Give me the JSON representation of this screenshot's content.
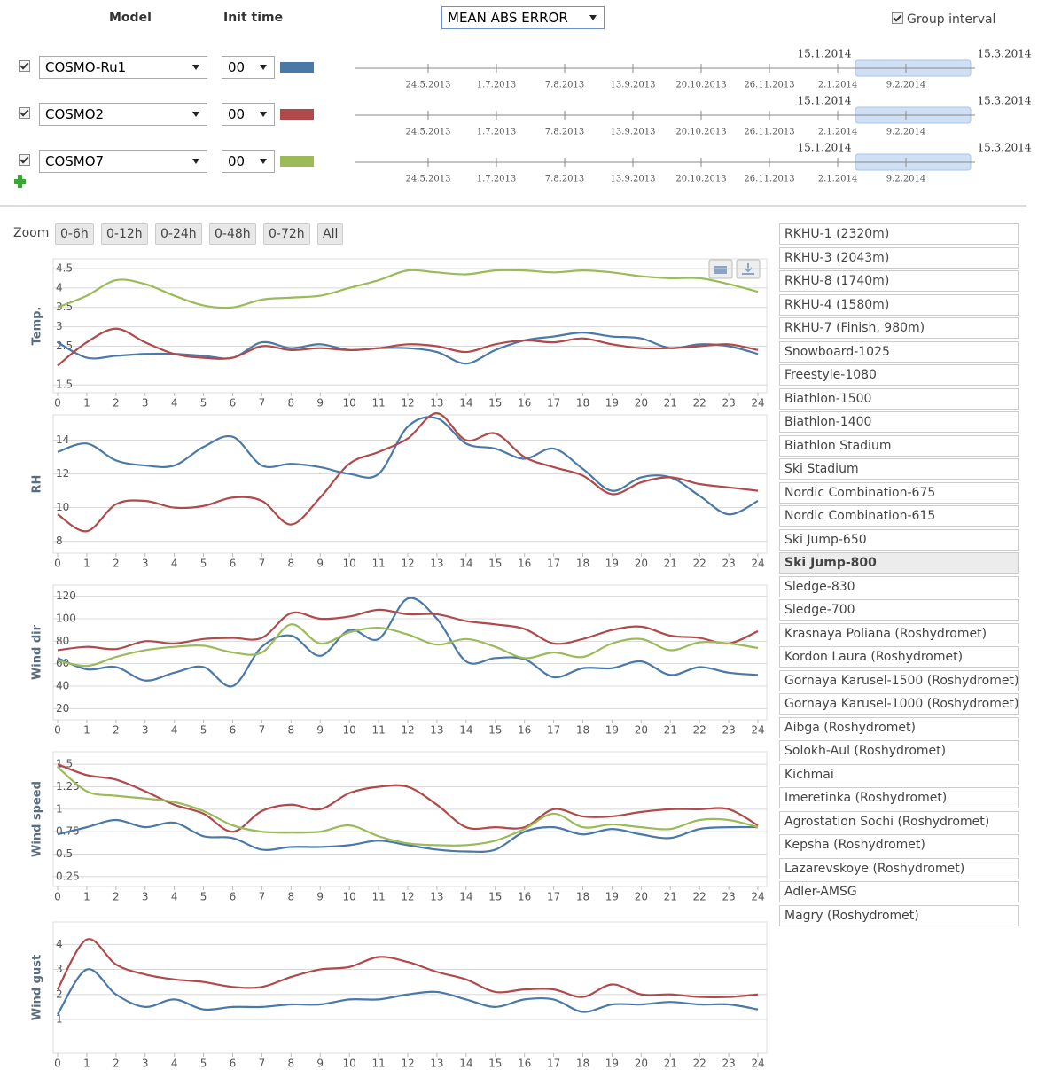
{
  "header": {
    "model_label": "Model",
    "init_label": "Init time",
    "metric": "MEAN ABS ERROR",
    "group_interval": "Group interval",
    "group_checked": true
  },
  "models": [
    {
      "name": "COSMO-Ru1",
      "init": "00",
      "color": "#4a79a8",
      "checked": true
    },
    {
      "name": "COSMO2",
      "init": "00",
      "color": "#b04a4a",
      "checked": true
    },
    {
      "name": "COSMO7",
      "init": "00",
      "color": "#9bbb59",
      "checked": true
    }
  ],
  "timelines": [
    {
      "start": "15.1.2014",
      "end": "15.3.2014",
      "ticks": [
        "24.5.2013",
        "1.7.2013",
        "7.8.2013",
        "13.9.2013",
        "20.10.2013",
        "26.11.2013",
        "2.1.2014",
        "9.2.2014"
      ]
    },
    {
      "start": "15.1.2014",
      "end": "15.3.2014",
      "ticks": [
        "24.5.2013",
        "1.7.2013",
        "7.8.2013",
        "13.9.2013",
        "20.10.2013",
        "26.11.2013",
        "2.1.2014",
        "9.2.2014"
      ]
    },
    {
      "start": "15.1.2014",
      "end": "15.3.2014",
      "ticks": [
        "24.5.2013",
        "1.7.2013",
        "7.8.2013",
        "13.9.2013",
        "20.10.2013",
        "26.11.2013",
        "2.1.2014",
        "9.2.2014"
      ]
    }
  ],
  "zoom": {
    "label": "Zoom",
    "buttons": [
      "0-6h",
      "0-12h",
      "0-24h",
      "0-48h",
      "0-72h",
      "All"
    ]
  },
  "stations": {
    "selected": 14,
    "items": [
      "RKHU-1 (2320m)",
      "RKHU-3 (2043m)",
      "RKHU-8 (1740m)",
      "RKHU-4 (1580m)",
      "RKHU-7 (Finish, 980m)",
      "Snowboard-1025",
      "Freestyle-1080",
      "Biathlon-1500",
      "Biathlon-1400",
      "Biathlon Stadium",
      "Ski Stadium",
      "Nordic Combination-675",
      "Nordic Combination-615",
      "Ski Jump-650",
      "Ski Jump-800",
      "Sledge-830",
      "Sledge-700",
      "Krasnaya Poliana (Roshydromet)",
      "Kordon Laura (Roshydromet)",
      "Gornaya Karusel-1500 (Roshydromet)",
      "Gornaya Karusel-1000 (Roshydromet)",
      "Aibga (Roshydromet)",
      "Solokh-Aul (Roshydromet)",
      "Kichmai",
      "Imeretinka (Roshydromet)",
      "Agrostation Sochi (Roshydromet)",
      "Kepsha (Roshydromet)",
      "Lazarevskoye (Roshydromet)",
      "Adler-AMSG",
      "Magry (Roshydromet)"
    ]
  },
  "chart_data": [
    {
      "type": "line",
      "ylabel": "Temp.",
      "x": [
        0,
        1,
        2,
        3,
        4,
        5,
        6,
        7,
        8,
        9,
        10,
        11,
        12,
        13,
        14,
        15,
        16,
        17,
        18,
        19,
        20,
        21,
        22,
        23,
        24
      ],
      "xlim": [
        0,
        24
      ],
      "xticks": [
        0,
        1,
        2,
        3,
        4,
        5,
        6,
        7,
        8,
        9,
        10,
        11,
        12,
        13,
        14,
        15,
        16,
        17,
        18,
        19,
        20,
        21,
        22,
        23,
        24
      ],
      "ylim": [
        1.3,
        4.75
      ],
      "yticks": [
        1.5,
        2.5,
        3,
        3.5,
        4,
        4.5
      ],
      "grid": true,
      "series": [
        {
          "color": "#4a79a8",
          "values": [
            2.6,
            2.2,
            2.25,
            2.3,
            2.3,
            2.25,
            2.2,
            2.6,
            2.45,
            2.55,
            2.4,
            2.45,
            2.45,
            2.35,
            2.05,
            2.4,
            2.65,
            2.75,
            2.85,
            2.75,
            2.7,
            2.45,
            2.55,
            2.5,
            2.3
          ]
        },
        {
          "color": "#b04a4a",
          "values": [
            2.0,
            2.6,
            2.95,
            2.6,
            2.3,
            2.2,
            2.2,
            2.5,
            2.4,
            2.45,
            2.4,
            2.45,
            2.55,
            2.5,
            2.35,
            2.55,
            2.65,
            2.6,
            2.7,
            2.55,
            2.45,
            2.45,
            2.5,
            2.55,
            2.4
          ]
        },
        {
          "color": "#9bbb59",
          "values": [
            3.5,
            3.8,
            4.2,
            4.1,
            3.8,
            3.55,
            3.5,
            3.7,
            3.75,
            3.8,
            4.0,
            4.2,
            4.45,
            4.4,
            4.35,
            4.45,
            4.45,
            4.4,
            4.45,
            4.4,
            4.3,
            4.25,
            4.25,
            4.1,
            3.9
          ]
        }
      ]
    },
    {
      "type": "line",
      "ylabel": "RH",
      "x": [
        0,
        1,
        2,
        3,
        4,
        5,
        6,
        7,
        8,
        9,
        10,
        11,
        12,
        13,
        14,
        15,
        16,
        17,
        18,
        19,
        20,
        21,
        22,
        23,
        24
      ],
      "xlim": [
        0,
        24
      ],
      "xticks": [
        0,
        1,
        2,
        3,
        4,
        5,
        6,
        7,
        8,
        9,
        10,
        11,
        12,
        13,
        14,
        15,
        16,
        17,
        18,
        19,
        20,
        21,
        22,
        23,
        24
      ],
      "ylim": [
        7.3,
        15.5
      ],
      "yticks": [
        8,
        10,
        12,
        14
      ],
      "grid": true,
      "series": [
        {
          "color": "#4a79a8",
          "values": [
            13.3,
            13.8,
            12.8,
            12.5,
            12.5,
            13.6,
            14.2,
            12.5,
            12.6,
            12.4,
            12.0,
            12.0,
            14.8,
            15.3,
            13.8,
            13.5,
            12.9,
            13.5,
            12.3,
            11.0,
            11.8,
            11.8,
            10.7,
            9.6,
            10.4
          ]
        },
        {
          "color": "#b04a4a",
          "values": [
            9.6,
            8.6,
            10.2,
            10.4,
            10.0,
            10.1,
            10.6,
            10.4,
            9.0,
            10.6,
            12.6,
            13.3,
            14.1,
            15.6,
            14.0,
            14.4,
            13.0,
            12.4,
            11.9,
            10.8,
            11.5,
            11.8,
            11.4,
            11.2,
            11.0
          ]
        }
      ]
    },
    {
      "type": "line",
      "ylabel": "Wind dir",
      "x": [
        0,
        1,
        2,
        3,
        4,
        5,
        6,
        7,
        8,
        9,
        10,
        11,
        12,
        13,
        14,
        15,
        16,
        17,
        18,
        19,
        20,
        21,
        22,
        23,
        24
      ],
      "xlim": [
        0,
        24
      ],
      "xticks": [
        0,
        1,
        2,
        3,
        4,
        5,
        6,
        7,
        8,
        9,
        10,
        11,
        12,
        13,
        14,
        15,
        16,
        17,
        18,
        19,
        20,
        21,
        22,
        23,
        24
      ],
      "ylim": [
        10,
        130
      ],
      "yticks": [
        20,
        40,
        60,
        80,
        100,
        120
      ],
      "grid": true,
      "series": [
        {
          "color": "#4a79a8",
          "values": [
            65,
            55,
            57,
            45,
            52,
            57,
            40,
            75,
            85,
            67,
            90,
            82,
            118,
            100,
            62,
            65,
            64,
            48,
            56,
            56,
            62,
            50,
            57,
            52,
            50
          ]
        },
        {
          "color": "#b04a4a",
          "values": [
            72,
            75,
            73,
            80,
            78,
            82,
            83,
            83,
            105,
            100,
            102,
            108,
            104,
            104,
            98,
            95,
            91,
            78,
            82,
            90,
            93,
            85,
            83,
            78,
            89
          ]
        },
        {
          "color": "#9bbb59",
          "values": [
            63,
            58,
            66,
            72,
            75,
            76,
            70,
            70,
            95,
            78,
            88,
            92,
            86,
            77,
            82,
            75,
            65,
            70,
            66,
            78,
            82,
            72,
            79,
            78,
            74
          ]
        }
      ]
    },
    {
      "type": "line",
      "ylabel": "Wind speed",
      "x": [
        0,
        1,
        2,
        3,
        4,
        5,
        6,
        7,
        8,
        9,
        10,
        11,
        12,
        13,
        14,
        15,
        16,
        17,
        18,
        19,
        20,
        21,
        22,
        23,
        24
      ],
      "xlim": [
        0,
        24
      ],
      "xticks": [
        0,
        1,
        2,
        3,
        4,
        5,
        6,
        7,
        8,
        9,
        10,
        11,
        12,
        13,
        14,
        15,
        16,
        17,
        18,
        19,
        20,
        21,
        22,
        23,
        24
      ],
      "ylim": [
        0.14,
        1.64
      ],
      "yticks": [
        0.25,
        0.5,
        0.75,
        1,
        1.25,
        1.5
      ],
      "grid": true,
      "series": [
        {
          "color": "#4a79a8",
          "values": [
            0.72,
            0.8,
            0.88,
            0.8,
            0.85,
            0.7,
            0.68,
            0.55,
            0.58,
            0.58,
            0.6,
            0.65,
            0.6,
            0.55,
            0.53,
            0.55,
            0.75,
            0.8,
            0.72,
            0.78,
            0.72,
            0.68,
            0.78,
            0.8,
            0.8
          ]
        },
        {
          "color": "#b04a4a",
          "values": [
            1.5,
            1.38,
            1.33,
            1.2,
            1.05,
            0.95,
            0.75,
            0.98,
            1.05,
            1.0,
            1.18,
            1.25,
            1.25,
            1.05,
            0.8,
            0.8,
            0.8,
            1.0,
            0.92,
            0.92,
            0.97,
            1.0,
            1.0,
            1.0,
            0.82
          ]
        },
        {
          "color": "#9bbb59",
          "values": [
            1.47,
            1.2,
            1.15,
            1.12,
            1.08,
            0.98,
            0.82,
            0.75,
            0.74,
            0.75,
            0.82,
            0.7,
            0.62,
            0.6,
            0.6,
            0.65,
            0.78,
            0.95,
            0.8,
            0.83,
            0.8,
            0.78,
            0.88,
            0.88,
            0.8
          ]
        }
      ]
    },
    {
      "type": "line",
      "ylabel": "Wind gust",
      "x": [
        0,
        1,
        2,
        3,
        4,
        5,
        6,
        7,
        8,
        9,
        10,
        11,
        12,
        13,
        14,
        15,
        16,
        17,
        18,
        19,
        20,
        21,
        22,
        23,
        24
      ],
      "xlim": [
        0,
        24
      ],
      "xticks": [
        0,
        1,
        2,
        3,
        4,
        5,
        6,
        7,
        8,
        9,
        10,
        11,
        12,
        13,
        14,
        15,
        16,
        17,
        18,
        19,
        20,
        21,
        22,
        23,
        24
      ],
      "ylim": [
        -0.35,
        4.9
      ],
      "yticks": [
        1,
        2,
        3,
        4
      ],
      "grid": true,
      "series": [
        {
          "color": "#4a79a8",
          "values": [
            1.2,
            3.0,
            2.0,
            1.5,
            1.8,
            1.4,
            1.5,
            1.5,
            1.6,
            1.6,
            1.8,
            1.8,
            2.0,
            2.1,
            1.8,
            1.5,
            1.8,
            1.8,
            1.3,
            1.6,
            1.6,
            1.7,
            1.6,
            1.6,
            1.4
          ]
        },
        {
          "color": "#b04a4a",
          "values": [
            2.2,
            4.2,
            3.2,
            2.8,
            2.6,
            2.5,
            2.3,
            2.3,
            2.7,
            3.0,
            3.1,
            3.5,
            3.3,
            2.9,
            2.6,
            2.1,
            2.2,
            2.2,
            1.9,
            2.4,
            2.0,
            2.0,
            1.9,
            1.9,
            2.0
          ]
        }
      ]
    }
  ]
}
